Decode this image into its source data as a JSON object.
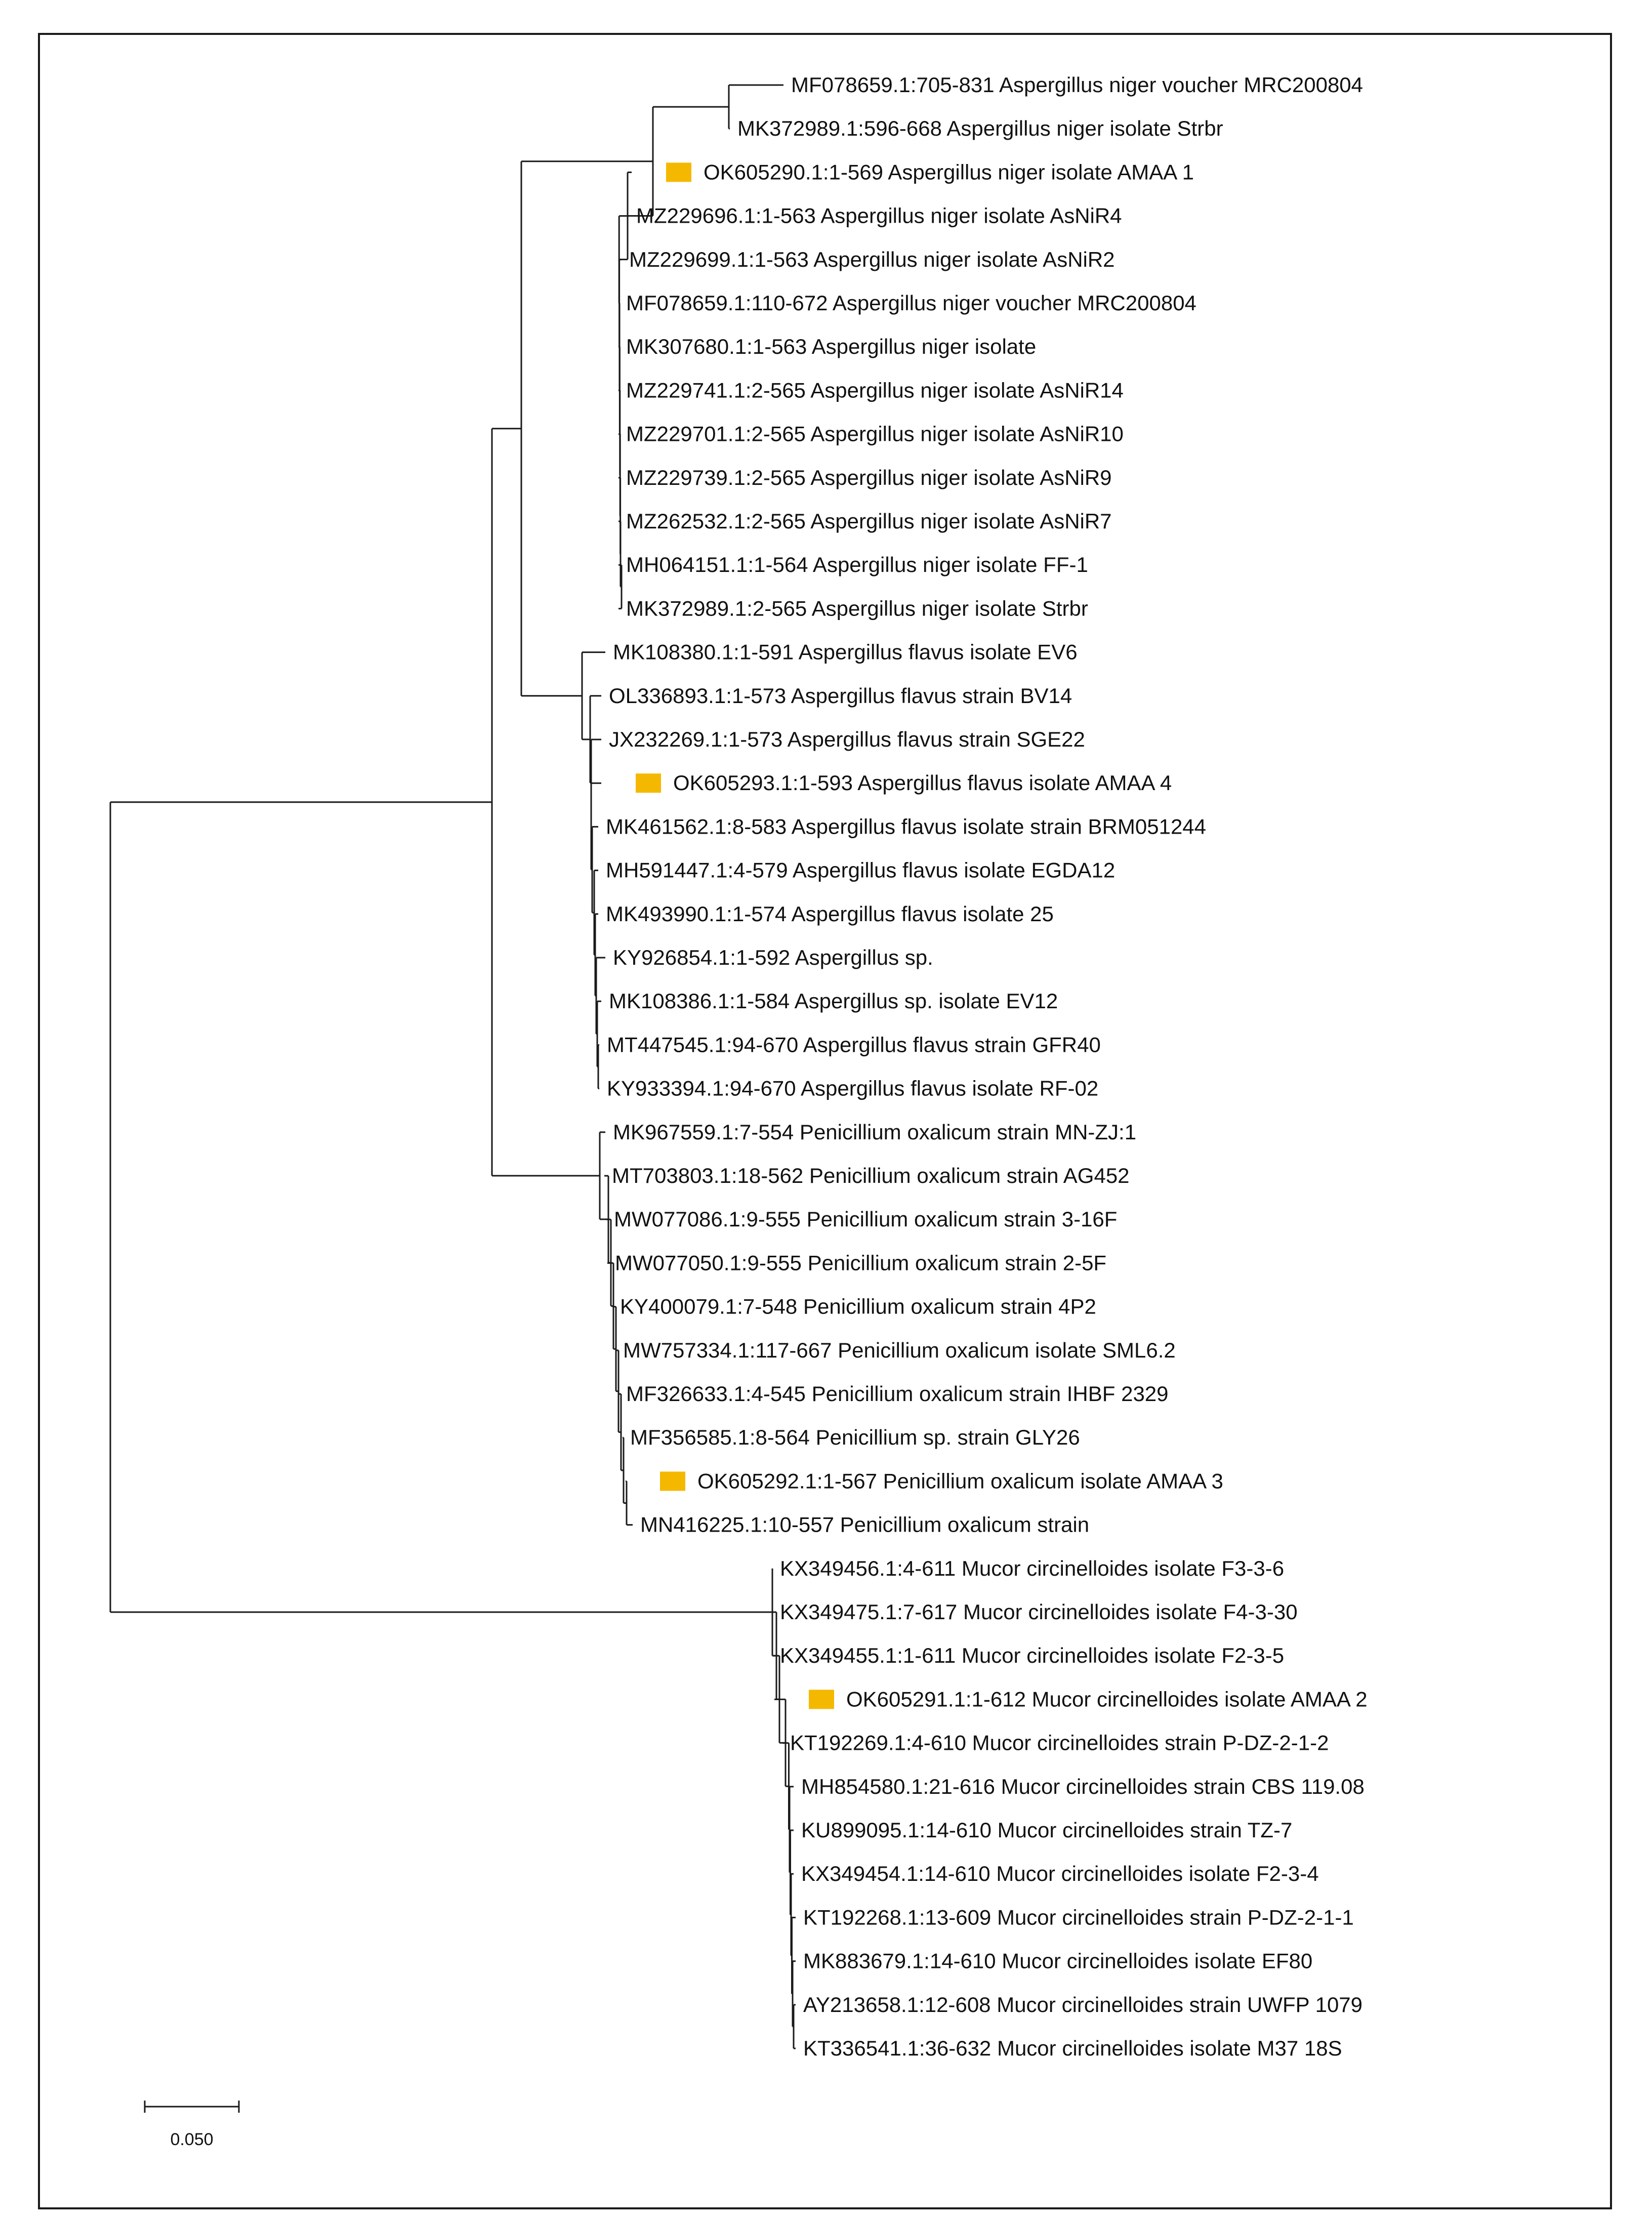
{
  "tree": {
    "highlight_color": "#F5B800",
    "scale_bar_label": "0.050",
    "clades": [
      {
        "id": "aspergillus-niger",
        "leaves": [
          {
            "label": "MF078659.1:705-831 Aspergillus niger voucher MRC200804"
          },
          {
            "label": "MK372989.1:596-668 Aspergillus niger isolate Strbr"
          },
          {
            "label": "OK605290.1:1-569 Aspergillus niger isolate AMAA 1",
            "highlight": true
          },
          {
            "label": "MZ229696.1:1-563 Aspergillus niger isolate AsNiR4"
          },
          {
            "label": "MZ229699.1:1-563 Aspergillus niger isolate AsNiR2"
          },
          {
            "label": "MF078659.1:110-672 Aspergillus niger voucher MRC200804"
          },
          {
            "label": "MK307680.1:1-563 Aspergillus niger isolate"
          },
          {
            "label": "MZ229741.1:2-565 Aspergillus niger isolate AsNiR14"
          },
          {
            "label": "MZ229701.1:2-565 Aspergillus niger isolate AsNiR10"
          },
          {
            "label": "MZ229739.1:2-565 Aspergillus niger isolate AsNiR9"
          },
          {
            "label": "MZ262532.1:2-565 Aspergillus niger isolate AsNiR7"
          },
          {
            "label": "MH064151.1:1-564 Aspergillus niger isolate FF-1"
          },
          {
            "label": "MK372989.1:2-565 Aspergillus niger isolate Strbr"
          }
        ]
      },
      {
        "id": "aspergillus-flavus",
        "leaves": [
          {
            "label": "MK108380.1:1-591 Aspergillus flavus isolate EV6"
          },
          {
            "label": "OL336893.1:1-573 Aspergillus flavus strain BV14"
          },
          {
            "label": "JX232269.1:1-573 Aspergillus flavus strain SGE22"
          },
          {
            "label": "OK605293.1:1-593 Aspergillus flavus isolate AMAA 4",
            "highlight": true
          },
          {
            "label": "MK461562.1:8-583 Aspergillus flavus isolate strain BRM051244"
          },
          {
            "label": "MH591447.1:4-579 Aspergillus flavus isolate EGDA12"
          },
          {
            "label": "MK493990.1:1-574 Aspergillus flavus isolate 25"
          },
          {
            "label": "KY926854.1:1-592 Aspergillus sp."
          },
          {
            "label": "MK108386.1:1-584 Aspergillus sp. isolate EV12"
          },
          {
            "label": "MT447545.1:94-670 Aspergillus flavus strain GFR40"
          },
          {
            "label": "KY933394.1:94-670 Aspergillus flavus isolate RF-02"
          }
        ]
      },
      {
        "id": "penicillium-oxalicum",
        "leaves": [
          {
            "label": "MK967559.1:7-554 Penicillium oxalicum strain MN-ZJ:1"
          },
          {
            "label": "MT703803.1:18-562 Penicillium oxalicum strain AG452"
          },
          {
            "label": "MW077086.1:9-555 Penicillium oxalicum strain 3-16F"
          },
          {
            "label": "MW077050.1:9-555 Penicillium oxalicum strain 2-5F"
          },
          {
            "label": "KY400079.1:7-548 Penicillium oxalicum strain 4P2"
          },
          {
            "label": "MW757334.1:117-667 Penicillium oxalicum isolate SML6.2"
          },
          {
            "label": "MF326633.1:4-545 Penicillium oxalicum strain IHBF 2329"
          },
          {
            "label": "MF356585.1:8-564 Penicillium sp. strain GLY26"
          },
          {
            "label": "OK605292.1:1-567 Penicillium oxalicum isolate AMAA 3",
            "highlight": true
          },
          {
            "label": "MN416225.1:10-557 Penicillium oxalicum strain"
          }
        ]
      },
      {
        "id": "mucor-circinelloides",
        "leaves": [
          {
            "label": "KX349456.1:4-611 Mucor circinelloides isolate F3-3-6"
          },
          {
            "label": "KX349475.1:7-617 Mucor circinelloides isolate F4-3-30"
          },
          {
            "label": "KX349455.1:1-611 Mucor circinelloides isolate F2-3-5"
          },
          {
            "label": "OK605291.1:1-612 Mucor circinelloides isolate AMAA 2",
            "highlight": true
          },
          {
            "label": "KT192269.1:4-610 Mucor circinelloides strain P-DZ-2-1-2"
          },
          {
            "label": "MH854580.1:21-616 Mucor circinelloides strain CBS 119.08"
          },
          {
            "label": "KU899095.1:14-610 Mucor circinelloides strain TZ-7"
          },
          {
            "label": "KX349454.1:14-610 Mucor circinelloides isolate F2-3-4"
          },
          {
            "label": "KT192268.1:13-609 Mucor circinelloides strain P-DZ-2-1-1"
          },
          {
            "label": "MK883679.1:14-610 Mucor circinelloides isolate EF80"
          },
          {
            "label": "AY213658.1:12-608 Mucor circinelloides strain UWFP 1079"
          },
          {
            "label": "KT336541.1:36-632 Mucor circinelloides isolate M37 18S"
          }
        ]
      }
    ]
  }
}
